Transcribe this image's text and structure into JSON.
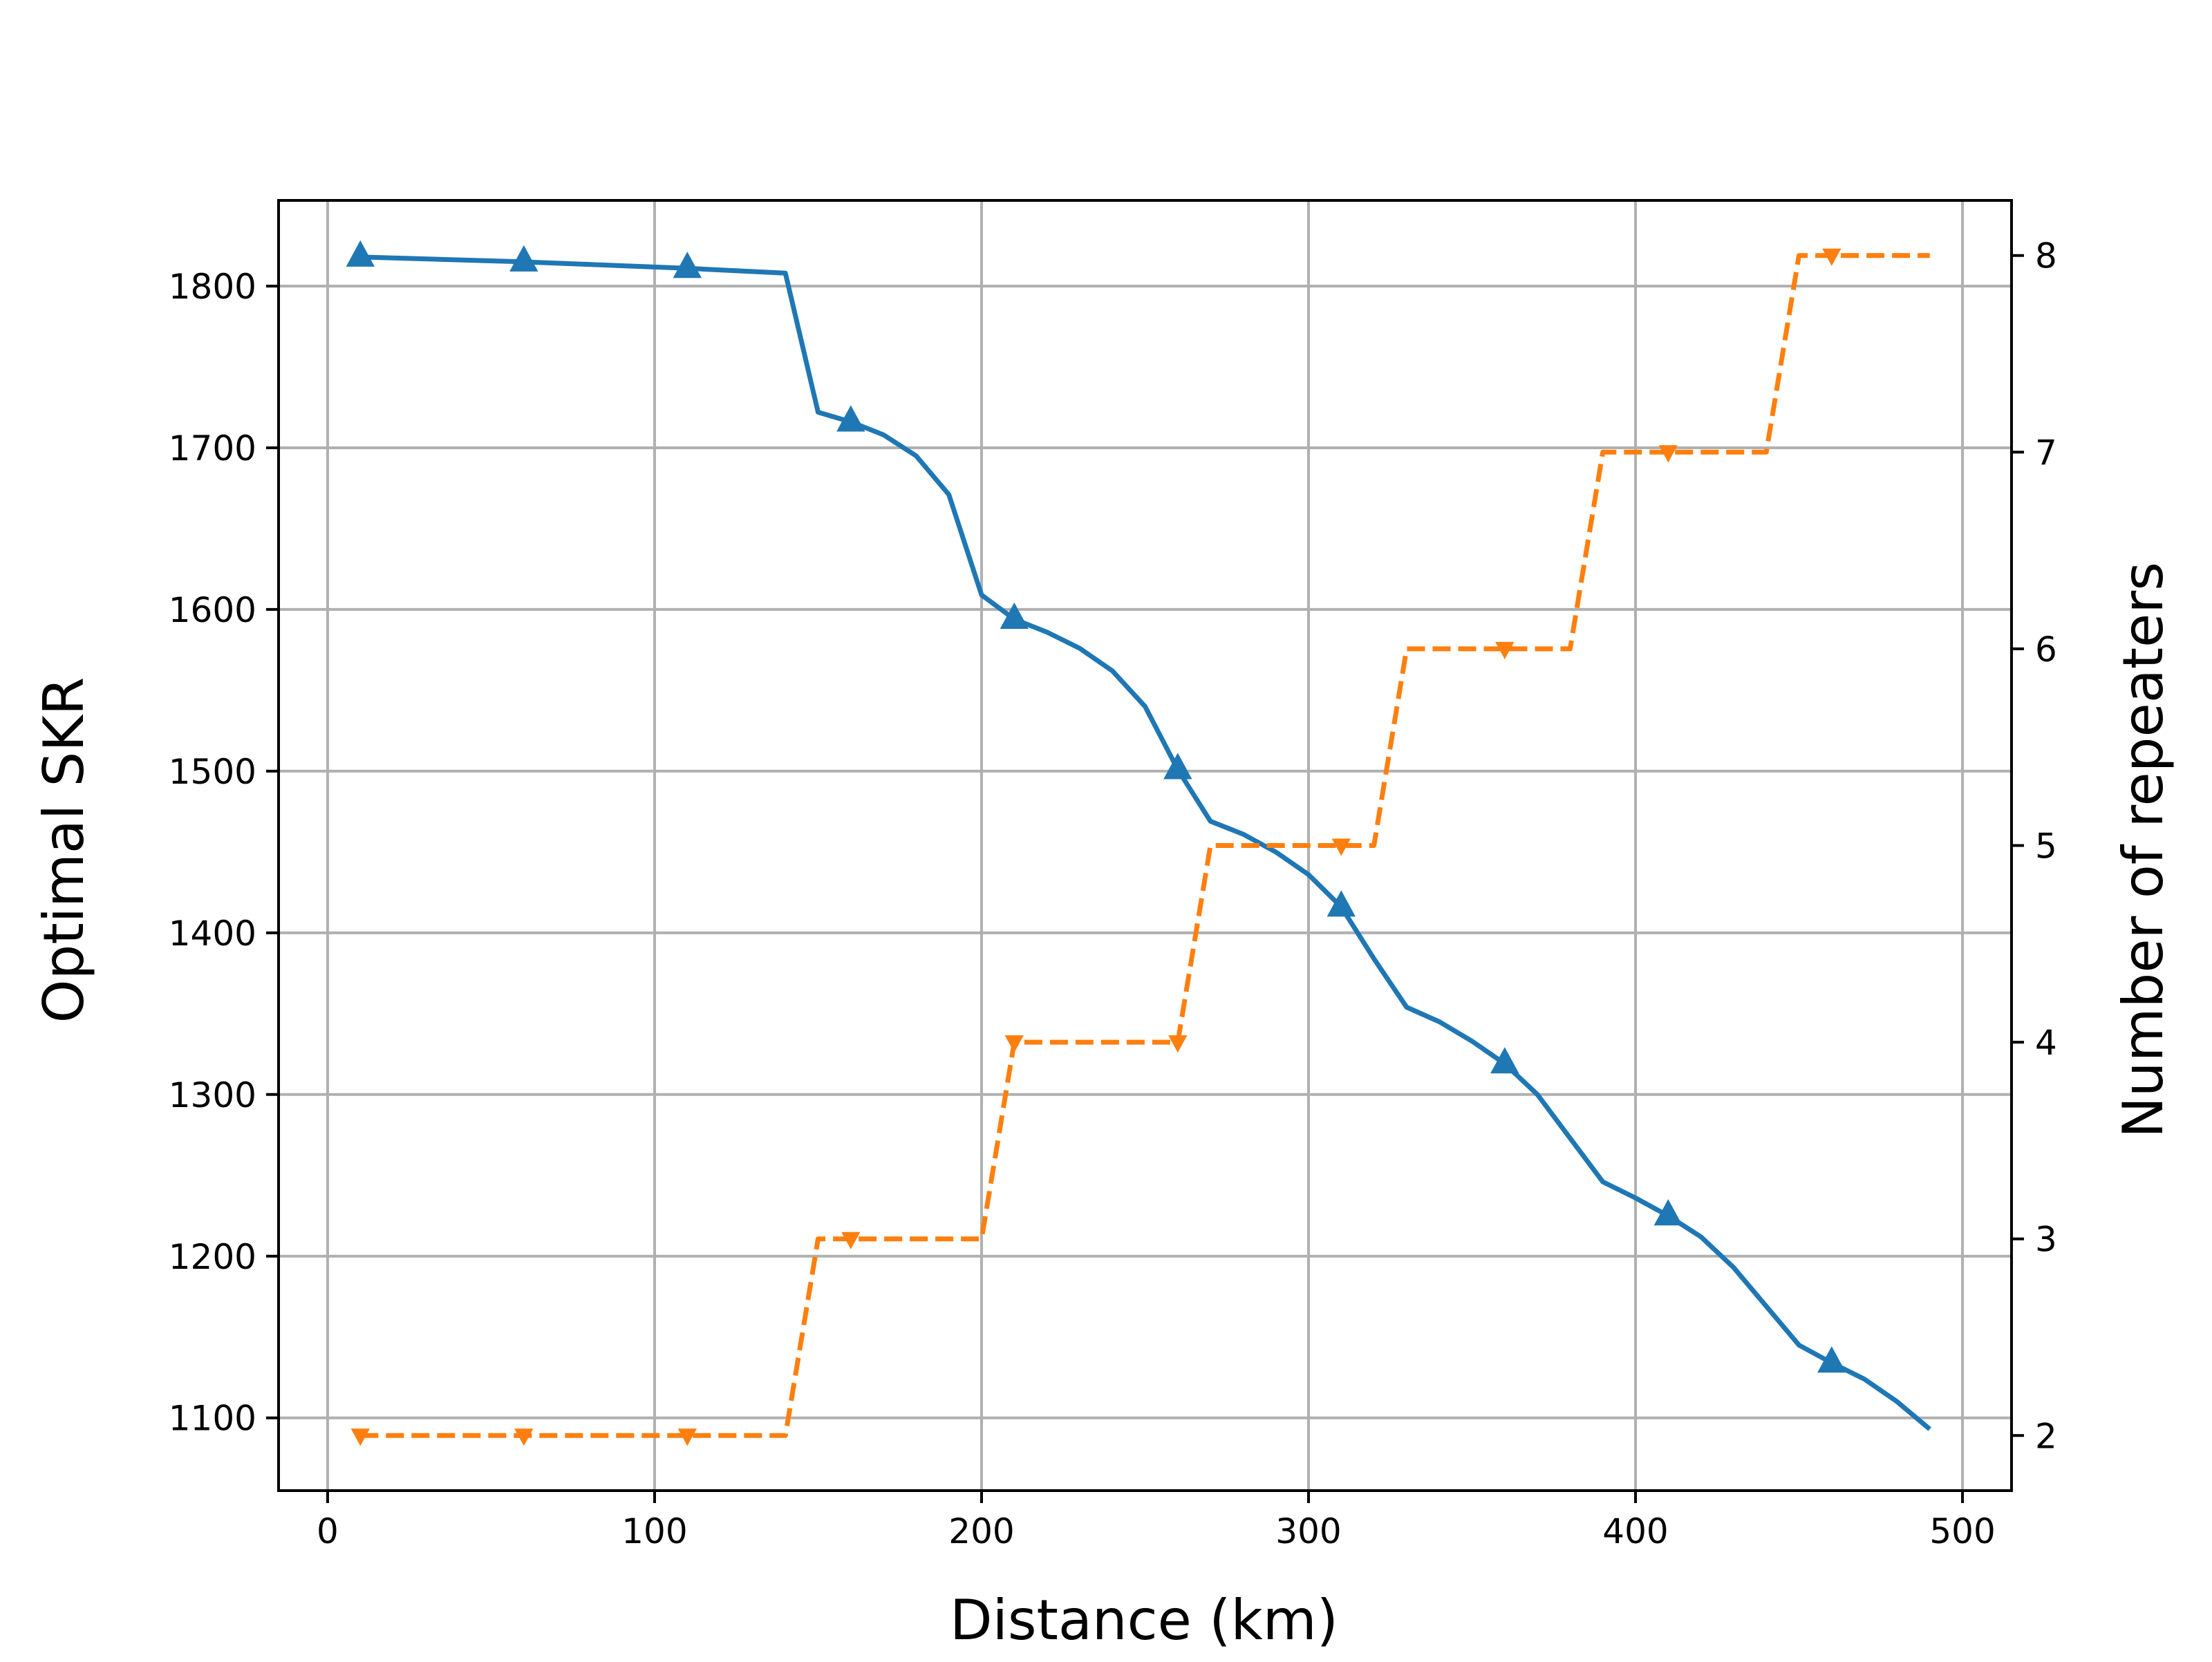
{
  "chart_data": {
    "type": "line",
    "xlabel": "Distance (km)",
    "ylabel": "Optimal SKR",
    "y2label": "Number of repeaters",
    "xlim": [
      -15,
      515
    ],
    "ylim": [
      1055,
      1853
    ],
    "y2lim": [
      1.72,
      8.28
    ],
    "xticks": [
      0,
      100,
      200,
      300,
      400,
      500
    ],
    "yticks": [
      1100,
      1200,
      1300,
      1400,
      1500,
      1600,
      1700,
      1800
    ],
    "y2ticks": [
      2,
      3,
      4,
      5,
      6,
      7,
      8
    ],
    "grid": true,
    "series": [
      {
        "axis": "left",
        "color": "#1f77b4",
        "linestyle": "solid",
        "marker": "triangle-up",
        "x": [
          10,
          60,
          110,
          140,
          150,
          160,
          170,
          180,
          190,
          200,
          210,
          220,
          230,
          240,
          250,
          260,
          270,
          280,
          290,
          300,
          310,
          320,
          330,
          340,
          350,
          360,
          370,
          380,
          390,
          400,
          410,
          420,
          430,
          440,
          450,
          460,
          470,
          480,
          490
        ],
        "values": [
          1818,
          1815,
          1811,
          1808,
          1722,
          1716,
          1708,
          1695,
          1671,
          1609,
          1594,
          1586,
          1576,
          1562,
          1540,
          1501,
          1469,
          1461,
          1450,
          1436,
          1416,
          1384,
          1354,
          1345,
          1333,
          1319,
          1300,
          1273,
          1246,
          1236,
          1225,
          1212,
          1193,
          1169,
          1145,
          1134,
          1124,
          1110,
          1093
        ],
        "marker_x": [
          10,
          60,
          110,
          160,
          210,
          260,
          310,
          360,
          410,
          460
        ]
      },
      {
        "axis": "right",
        "color": "#ff7f0e",
        "linestyle": "dashed",
        "marker": "triangle-down",
        "x": [
          10,
          60,
          110,
          140,
          150,
          160,
          170,
          180,
          190,
          200,
          210,
          220,
          230,
          240,
          250,
          260,
          270,
          280,
          290,
          300,
          310,
          320,
          330,
          340,
          350,
          360,
          370,
          380,
          390,
          400,
          410,
          420,
          430,
          440,
          450,
          460,
          470,
          480,
          490
        ],
        "values": [
          2,
          2,
          2,
          2,
          3,
          3,
          3,
          3,
          3,
          3,
          4,
          4,
          4,
          4,
          4,
          4,
          5,
          5,
          5,
          5,
          5,
          5,
          6,
          6,
          6,
          6,
          6,
          6,
          7,
          7,
          7,
          7,
          7,
          7,
          8,
          8,
          8,
          8,
          8
        ],
        "marker_x": [
          10,
          60,
          110,
          160,
          210,
          260,
          310,
          360,
          410,
          460
        ]
      }
    ]
  }
}
